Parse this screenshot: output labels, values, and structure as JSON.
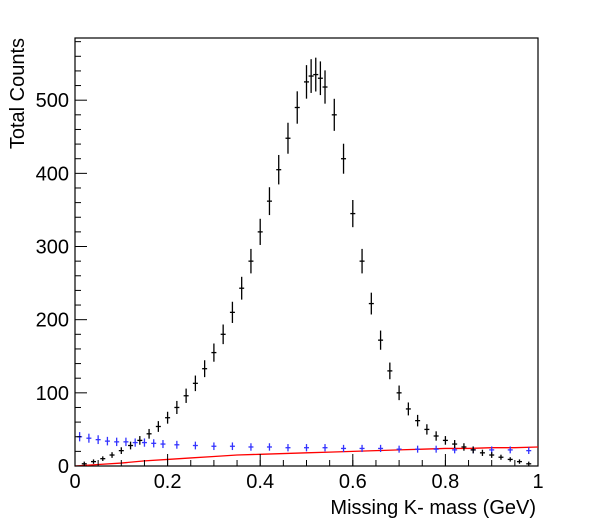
{
  "chart_data": {
    "type": "scatter",
    "title": "",
    "xlabel": "Missing K- mass (GeV)",
    "ylabel": "Total Counts",
    "xlim": [
      0,
      1
    ],
    "ylim": [
      0,
      585
    ],
    "grid": false,
    "legend": "none",
    "x_ticks": [
      {
        "value": 0,
        "label": "0"
      },
      {
        "value": 0.2,
        "label": "0.2"
      },
      {
        "value": 0.4,
        "label": "0.4"
      },
      {
        "value": 0.6,
        "label": "0.6"
      },
      {
        "value": 0.8,
        "label": "0.8"
      },
      {
        "value": 1,
        "label": "1"
      }
    ],
    "y_ticks": [
      {
        "value": 0,
        "label": "0"
      },
      {
        "value": 100,
        "label": "100"
      },
      {
        "value": 200,
        "label": "200"
      },
      {
        "value": 300,
        "label": "300"
      },
      {
        "value": 400,
        "label": "400"
      },
      {
        "value": 500,
        "label": "500"
      }
    ],
    "series": [
      {
        "color": "#000000",
        "style": "points-with-errors",
        "points": [
          [
            0.02,
            3
          ],
          [
            0.04,
            6
          ],
          [
            0.06,
            10
          ],
          [
            0.08,
            15
          ],
          [
            0.1,
            21
          ],
          [
            0.12,
            28
          ],
          [
            0.14,
            35
          ],
          [
            0.16,
            44
          ],
          [
            0.18,
            54
          ],
          [
            0.2,
            66
          ],
          [
            0.22,
            80
          ],
          [
            0.24,
            96
          ],
          [
            0.26,
            113
          ],
          [
            0.28,
            133
          ],
          [
            0.3,
            155
          ],
          [
            0.32,
            180
          ],
          [
            0.34,
            210
          ],
          [
            0.36,
            243
          ],
          [
            0.38,
            280
          ],
          [
            0.4,
            320
          ],
          [
            0.42,
            362
          ],
          [
            0.44,
            405
          ],
          [
            0.46,
            448
          ],
          [
            0.48,
            490
          ],
          [
            0.5,
            525
          ],
          [
            0.51,
            533
          ],
          [
            0.52,
            535
          ],
          [
            0.53,
            530
          ],
          [
            0.54,
            518
          ],
          [
            0.56,
            480
          ],
          [
            0.58,
            420
          ],
          [
            0.6,
            345
          ],
          [
            0.62,
            280
          ],
          [
            0.64,
            222
          ],
          [
            0.66,
            172
          ],
          [
            0.68,
            130
          ],
          [
            0.7,
            100
          ],
          [
            0.72,
            78
          ],
          [
            0.74,
            62
          ],
          [
            0.76,
            50
          ],
          [
            0.78,
            41
          ],
          [
            0.8,
            35
          ],
          [
            0.82,
            30
          ],
          [
            0.84,
            26
          ],
          [
            0.86,
            22
          ],
          [
            0.88,
            18
          ],
          [
            0.9,
            15
          ],
          [
            0.92,
            12
          ],
          [
            0.94,
            9
          ],
          [
            0.96,
            6
          ],
          [
            0.98,
            3
          ]
        ]
      },
      {
        "color": "#3333ff",
        "style": "points-with-errors",
        "points": [
          [
            0.01,
            40
          ],
          [
            0.03,
            38
          ],
          [
            0.05,
            36
          ],
          [
            0.07,
            34
          ],
          [
            0.09,
            33
          ],
          [
            0.11,
            33
          ],
          [
            0.13,
            32
          ],
          [
            0.15,
            32
          ],
          [
            0.17,
            31
          ],
          [
            0.19,
            30
          ],
          [
            0.22,
            29
          ],
          [
            0.26,
            28
          ],
          [
            0.3,
            27
          ],
          [
            0.34,
            27
          ],
          [
            0.38,
            26
          ],
          [
            0.42,
            26
          ],
          [
            0.46,
            25
          ],
          [
            0.5,
            25
          ],
          [
            0.54,
            25
          ],
          [
            0.58,
            24
          ],
          [
            0.62,
            24
          ],
          [
            0.66,
            24
          ],
          [
            0.7,
            23
          ],
          [
            0.74,
            23
          ],
          [
            0.78,
            23
          ],
          [
            0.82,
            22
          ],
          [
            0.86,
            22
          ],
          [
            0.9,
            22
          ],
          [
            0.94,
            22
          ],
          [
            0.98,
            21
          ]
        ]
      },
      {
        "color": "#ff0000",
        "style": "line",
        "points": [
          [
            0,
            0
          ],
          [
            0.05,
            2
          ],
          [
            0.1,
            4
          ],
          [
            0.15,
            7
          ],
          [
            0.2,
            9
          ],
          [
            0.25,
            11
          ],
          [
            0.3,
            13
          ],
          [
            0.35,
            15
          ],
          [
            0.4,
            16
          ],
          [
            0.45,
            17
          ],
          [
            0.5,
            18
          ],
          [
            0.55,
            19
          ],
          [
            0.6,
            20
          ],
          [
            0.65,
            21
          ],
          [
            0.7,
            22
          ],
          [
            0.75,
            23
          ],
          [
            0.8,
            24
          ],
          [
            0.85,
            24
          ],
          [
            0.9,
            25
          ],
          [
            0.95,
            25
          ],
          [
            1.0,
            26
          ]
        ]
      }
    ]
  }
}
